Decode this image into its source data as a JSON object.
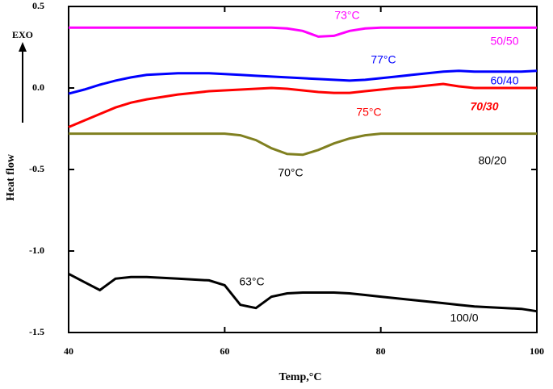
{
  "chart_data": {
    "type": "line",
    "xlabel": "Temp,°C",
    "ylabel": "Heat flow",
    "exo_label": "EXO",
    "x": [
      40,
      42,
      44,
      46,
      48,
      50,
      52,
      54,
      56,
      58,
      60,
      62,
      64,
      66,
      68,
      70,
      72,
      74,
      76,
      78,
      80,
      82,
      84,
      86,
      88,
      90,
      92,
      94,
      96,
      98,
      100
    ],
    "series": [
      {
        "name": "50/50",
        "color": "#ff00ff",
        "values": [
          0.37,
          0.37,
          0.37,
          0.37,
          0.37,
          0.37,
          0.37,
          0.37,
          0.37,
          0.37,
          0.37,
          0.37,
          0.37,
          0.37,
          0.365,
          0.35,
          0.315,
          0.32,
          0.35,
          0.365,
          0.37,
          0.37,
          0.37,
          0.37,
          0.37,
          0.37,
          0.37,
          0.37,
          0.37,
          0.37,
          0.37
        ]
      },
      {
        "name": "60/40",
        "color": "#0000ff",
        "values": [
          -0.035,
          -0.01,
          0.02,
          0.045,
          0.065,
          0.08,
          0.085,
          0.09,
          0.09,
          0.09,
          0.085,
          0.08,
          0.075,
          0.07,
          0.065,
          0.06,
          0.055,
          0.05,
          0.045,
          0.05,
          0.06,
          0.07,
          0.08,
          0.09,
          0.1,
          0.105,
          0.1,
          0.1,
          0.1,
          0.1,
          0.105
        ]
      },
      {
        "name": "70/30",
        "color": "#ff0000",
        "values": [
          -0.24,
          -0.2,
          -0.16,
          -0.12,
          -0.09,
          -0.07,
          -0.055,
          -0.04,
          -0.03,
          -0.02,
          -0.015,
          -0.01,
          -0.005,
          0,
          -0.005,
          -0.015,
          -0.025,
          -0.03,
          -0.03,
          -0.02,
          -0.01,
          0,
          0.005,
          0.015,
          0.025,
          0.01,
          0,
          0,
          0,
          0,
          0
        ]
      },
      {
        "name": "80/20",
        "color": "#808020",
        "values": [
          -0.28,
          -0.28,
          -0.28,
          -0.28,
          -0.28,
          -0.28,
          -0.28,
          -0.28,
          -0.28,
          -0.28,
          -0.28,
          -0.29,
          -0.32,
          -0.37,
          -0.405,
          -0.41,
          -0.38,
          -0.34,
          -0.31,
          -0.29,
          -0.28,
          -0.28,
          -0.28,
          -0.28,
          -0.28,
          -0.28,
          -0.28,
          -0.28,
          -0.28,
          -0.28,
          -0.28
        ]
      },
      {
        "name": "100/0",
        "color": "#000000",
        "values": [
          -1.14,
          -1.19,
          -1.24,
          -1.17,
          -1.16,
          -1.16,
          -1.165,
          -1.17,
          -1.175,
          -1.18,
          -1.21,
          -1.33,
          -1.35,
          -1.28,
          -1.26,
          -1.255,
          -1.255,
          -1.255,
          -1.26,
          -1.27,
          -1.28,
          -1.29,
          -1.3,
          -1.31,
          -1.32,
          -1.33,
          -1.34,
          -1.345,
          -1.35,
          -1.355,
          -1.37
        ]
      }
    ],
    "annotations": [
      "73°C",
      "77°C",
      "75°C",
      "70°C",
      "63°C"
    ],
    "xlim": [
      40,
      100
    ],
    "xticks": [
      40,
      60,
      80,
      100
    ],
    "ylim": [
      -1.5,
      0.5
    ],
    "yticks": [
      {
        "value": -1.5,
        "label": "-1.5"
      },
      {
        "value": -1.0,
        "label": "-1.0"
      },
      -0.5,
      {
        "value": 0,
        "label": "0.0"
      },
      0.5
    ],
    "grid": false
  }
}
